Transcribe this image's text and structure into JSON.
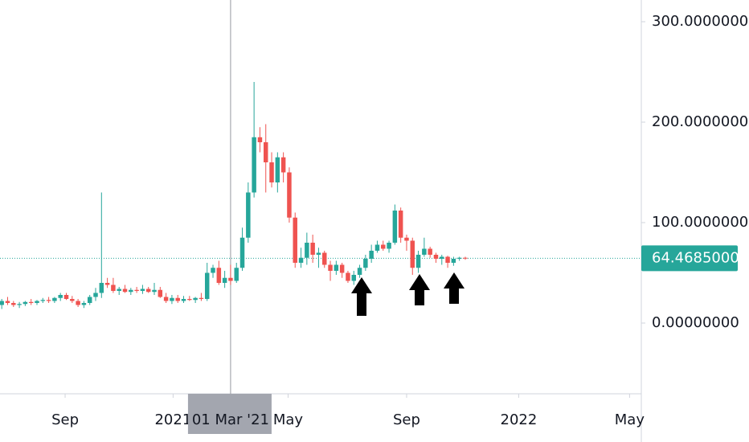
{
  "chart_data": {
    "type": "candlestick",
    "up_color": "#26a69a",
    "down_color": "#ef5350",
    "open": [
      18,
      22,
      20,
      18,
      19,
      21,
      20,
      22,
      23,
      22,
      25,
      28,
      24,
      22,
      18,
      20,
      26,
      30,
      40,
      38,
      32,
      34,
      31,
      33,
      32,
      34,
      31,
      33,
      26,
      22,
      25,
      22,
      24,
      23,
      25,
      24,
      50,
      55,
      40,
      45,
      42,
      55,
      85,
      130,
      185,
      180,
      160,
      140,
      165,
      150,
      105,
      60,
      65,
      80,
      68,
      70,
      58,
      52,
      58,
      50,
      42,
      48,
      55,
      64,
      72,
      78,
      74,
      80,
      112,
      85,
      82,
      55,
      68,
      74,
      68,
      64,
      66,
      60,
      64,
      65
    ],
    "high": [
      24,
      26,
      22,
      21,
      22,
      24,
      23,
      25,
      26,
      26,
      30,
      30,
      27,
      24,
      22,
      28,
      35,
      130,
      45,
      45,
      36,
      38,
      35,
      36,
      38,
      36,
      40,
      36,
      30,
      28,
      28,
      27,
      27,
      26,
      30,
      60,
      58,
      62,
      52,
      58,
      60,
      95,
      140,
      240,
      195,
      198,
      170,
      170,
      170,
      155,
      110,
      75,
      90,
      88,
      75,
      72,
      62,
      62,
      60,
      52,
      52,
      58,
      68,
      78,
      82,
      82,
      82,
      118,
      115,
      88,
      85,
      72,
      85,
      76,
      70,
      68,
      67,
      66,
      66,
      66
    ],
    "low": [
      14,
      18,
      16,
      15,
      17,
      18,
      18,
      20,
      20,
      20,
      22,
      23,
      20,
      16,
      15,
      18,
      22,
      25,
      35,
      30,
      28,
      30,
      28,
      30,
      29,
      30,
      28,
      25,
      20,
      19,
      20,
      20,
      22,
      20,
      22,
      22,
      45,
      38,
      35,
      38,
      40,
      52,
      80,
      125,
      170,
      130,
      135,
      130,
      140,
      100,
      55,
      55,
      58,
      60,
      55,
      55,
      42,
      48,
      45,
      40,
      38,
      45,
      52,
      60,
      70,
      72,
      70,
      78,
      80,
      72,
      48,
      50,
      66,
      65,
      60,
      58,
      55,
      57,
      62,
      63
    ],
    "close": [
      22,
      20,
      18,
      19,
      21,
      20,
      22,
      23,
      22,
      25,
      28,
      24,
      22,
      18,
      20,
      26,
      30,
      40,
      38,
      32,
      34,
      31,
      33,
      32,
      34,
      31,
      33,
      26,
      22,
      25,
      22,
      24,
      23,
      25,
      24,
      50,
      55,
      40,
      45,
      42,
      55,
      85,
      130,
      185,
      180,
      160,
      140,
      165,
      150,
      105,
      60,
      65,
      80,
      68,
      70,
      58,
      52,
      58,
      50,
      42,
      48,
      55,
      64,
      72,
      78,
      74,
      80,
      112,
      85,
      82,
      55,
      68,
      74,
      68,
      64,
      66,
      60,
      64,
      65,
      64.4685
    ],
    "xlim": [
      -0.3,
      109
    ],
    "xticks": [
      {
        "value": 10.8,
        "label": "Sep"
      },
      {
        "value": 29.2,
        "label": "2021"
      },
      {
        "value": 48.8,
        "label": "May"
      },
      {
        "value": 69,
        "label": "Sep"
      },
      {
        "value": 88.1,
        "label": "2022"
      },
      {
        "value": 107,
        "label": "May"
      }
    ],
    "ylim": [
      -70.4,
      321.6
    ],
    "yticks": [
      {
        "value": 0,
        "label": "0.00000000"
      },
      {
        "value": 100,
        "label": "100.00000000"
      },
      {
        "value": 200,
        "label": "200.00000000"
      },
      {
        "value": 300,
        "label": "300.00000000"
      }
    ],
    "last_price": {
      "value": 64.4685,
      "label": "64.46850000"
    },
    "crosshair": {
      "value": 39,
      "label": "01 Mar '21"
    }
  }
}
